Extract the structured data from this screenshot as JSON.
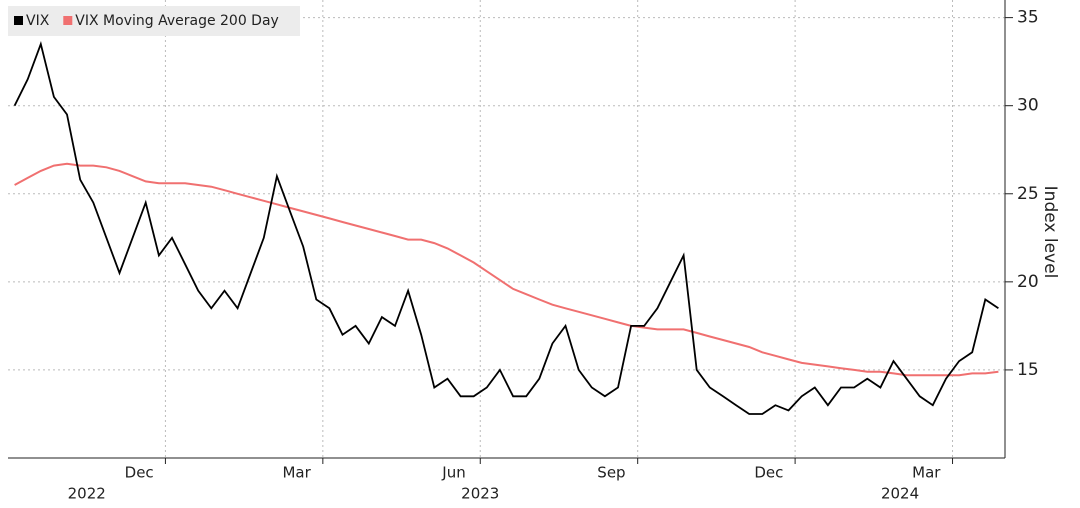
{
  "chart_data": {
    "type": "line",
    "y_axis_label": "Index level",
    "x": [
      "2022-10",
      "2022-10",
      "2022-10",
      "2022-10",
      "2022-11",
      "2022-11",
      "2022-11",
      "2022-11",
      "2022-12",
      "2022-12",
      "2022-12",
      "2022-12",
      "2023-01",
      "2023-01",
      "2023-01",
      "2023-01",
      "2023-02",
      "2023-02",
      "2023-02",
      "2023-02",
      "2023-03",
      "2023-03",
      "2023-03",
      "2023-03",
      "2023-04",
      "2023-04",
      "2023-04",
      "2023-04",
      "2023-05",
      "2023-05",
      "2023-05",
      "2023-05",
      "2023-06",
      "2023-06",
      "2023-06",
      "2023-06",
      "2023-07",
      "2023-07",
      "2023-07",
      "2023-07",
      "2023-08",
      "2023-08",
      "2023-08",
      "2023-08",
      "2023-09",
      "2023-09",
      "2023-09",
      "2023-09",
      "2023-10",
      "2023-10",
      "2023-10",
      "2023-10",
      "2023-11",
      "2023-11",
      "2023-11",
      "2023-11",
      "2023-12",
      "2023-12",
      "2023-12",
      "2023-12",
      "2024-01",
      "2024-01",
      "2024-01",
      "2024-01",
      "2024-02",
      "2024-02",
      "2024-02",
      "2024-02",
      "2024-03",
      "2024-03",
      "2024-03",
      "2024-03",
      "2024-04",
      "2024-04",
      "2024-04",
      "2024-04"
    ],
    "series": [
      {
        "name": "VIX",
        "color": "#000000",
        "values": [
          30,
          31.5,
          33.5,
          30.5,
          29.5,
          25.8,
          24.5,
          22.5,
          20.5,
          22.5,
          24.5,
          21.5,
          22.5,
          21,
          19.5,
          18.5,
          19.5,
          18.5,
          20.5,
          22.5,
          26,
          24,
          22,
          19,
          18.5,
          17,
          17.5,
          16.5,
          18,
          17.5,
          19.5,
          17,
          14,
          14.5,
          13.5,
          13.5,
          14,
          15,
          13.5,
          13.5,
          14.5,
          16.5,
          17.5,
          15,
          14,
          13.5,
          14,
          17.5,
          17.5,
          18.5,
          20,
          21.5,
          15,
          14,
          13.5,
          13,
          12.5,
          12.5,
          13,
          12.7,
          13.5,
          14,
          13,
          14,
          14,
          14.5,
          14,
          15.5,
          14.5,
          13.5,
          13,
          14.5,
          15.5,
          16,
          19,
          18.5
        ]
      },
      {
        "name": "VIX Moving Average 200 Day",
        "color": "#f07070",
        "values": [
          25.5,
          25.9,
          26.3,
          26.6,
          26.7,
          26.6,
          26.6,
          26.5,
          26.3,
          26.0,
          25.7,
          25.6,
          25.6,
          25.6,
          25.5,
          25.4,
          25.2,
          25.0,
          24.8,
          24.6,
          24.4,
          24.2,
          24.0,
          23.8,
          23.6,
          23.4,
          23.2,
          23.0,
          22.8,
          22.6,
          22.4,
          22.4,
          22.2,
          21.9,
          21.5,
          21.1,
          20.6,
          20.1,
          19.6,
          19.3,
          19.0,
          18.7,
          18.5,
          18.3,
          18.1,
          17.9,
          17.7,
          17.5,
          17.4,
          17.3,
          17.3,
          17.3,
          17.1,
          16.9,
          16.7,
          16.5,
          16.3,
          16.0,
          15.8,
          15.6,
          15.4,
          15.3,
          15.2,
          15.1,
          15.0,
          14.9,
          14.9,
          14.8,
          14.7,
          14.7,
          14.7,
          14.7,
          14.7,
          14.8,
          14.8,
          14.9
        ]
      }
    ],
    "xlim": [
      "2022-10",
      "2024-05"
    ],
    "xticks": [
      {
        "value": "2022-12",
        "label": "Dec"
      },
      {
        "value": "2023-03",
        "label": "Mar"
      },
      {
        "value": "2023-06",
        "label": "Jun"
      },
      {
        "value": "2023-09",
        "label": "Sep"
      },
      {
        "value": "2023-12",
        "label": "Dec"
      },
      {
        "value": "2024-03",
        "label": "Mar"
      }
    ],
    "xgrid": [
      "2023-01",
      "2023-04",
      "2023-07",
      "2023-10",
      "2024-01",
      "2024-04"
    ],
    "years": [
      "2022",
      "2023",
      "2024"
    ],
    "ylim": [
      10,
      36
    ],
    "yticks": [
      15,
      20,
      25,
      30,
      35
    ],
    "grid": true,
    "legend": "top-left"
  }
}
